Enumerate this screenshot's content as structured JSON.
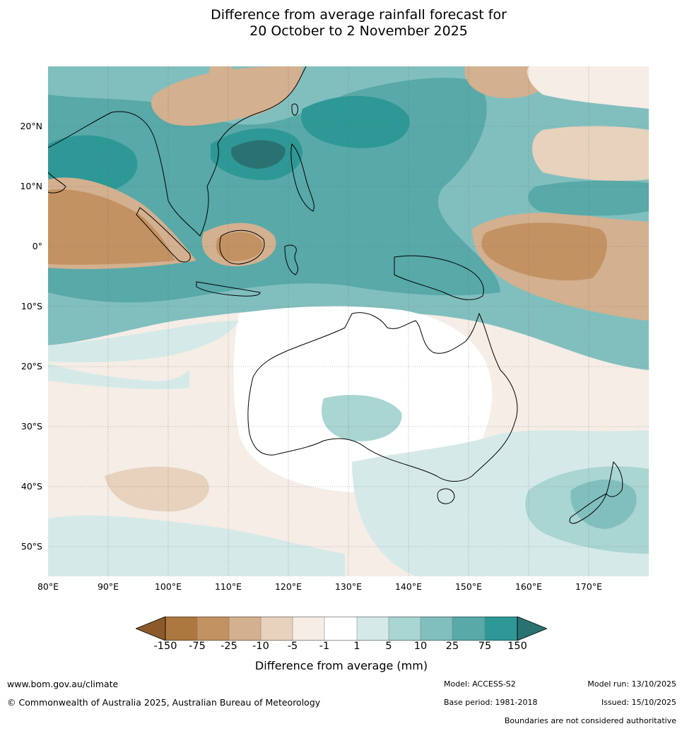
{
  "title_line1": "Difference from average rainfall forecast for",
  "title_line2": "20 October to 2 November 2025",
  "latitude_labels": [
    "20°N",
    "10°N",
    "0°",
    "10°S",
    "20°S",
    "30°S",
    "40°S",
    "50°S"
  ],
  "longitude_labels": [
    "80°E",
    "90°E",
    "100°E",
    "110°E",
    "120°E",
    "130°E",
    "140°E",
    "150°E",
    "160°E",
    "170°E"
  ],
  "legend": {
    "title": "Difference from average (mm)",
    "ticks": [
      "-150",
      "-75",
      "-25",
      "-10",
      "-5",
      "-1",
      "1",
      "5",
      "10",
      "25",
      "75",
      "150"
    ],
    "colors": {
      "below_min": "#8c5a2a",
      "c1": "#ad7740",
      "c2": "#c39262",
      "c3": "#d3b08f",
      "c4": "#e7d2bd",
      "c5": "#f5ede6",
      "c6": "#ffffff",
      "c7": "#d5eae8",
      "c8": "#a9d5d3",
      "c9": "#81bfbe",
      "c10": "#58a9a8",
      "c11": "#2e9896",
      "above_max": "#2a7271"
    }
  },
  "footer": {
    "website": "www.bom.gov.au/climate",
    "copyright": "© Commonwealth of Australia 2025, Australian Bureau of Meteorology",
    "model": "Model: ACCESS-S2",
    "base_period": "Base period: 1981-2018",
    "model_run": "Model run: 13/10/2025",
    "issued": "Issued: 15/10/2025",
    "disclaimer": "Boundaries are not considered authoritative"
  }
}
